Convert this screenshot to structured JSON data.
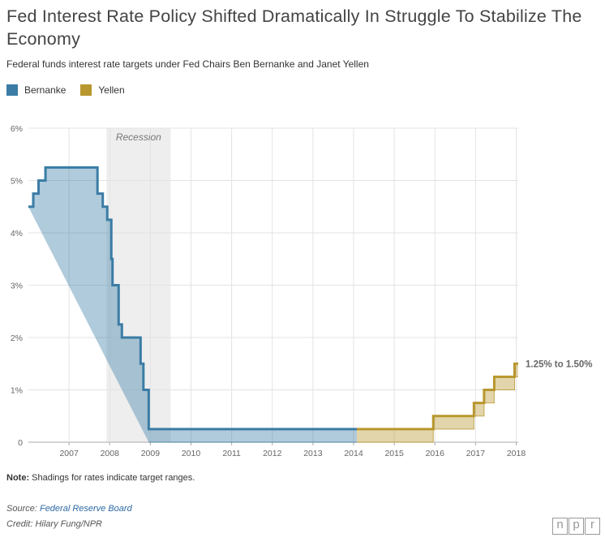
{
  "header": {
    "title": "Fed Interest Rate Policy Shifted Dramatically In Struggle To Stabilize The Economy",
    "subtitle": "Federal funds interest rate targets under Fed Chairs Ben Bernanke and Janet Yellen"
  },
  "legend": [
    {
      "label": "Bernanke",
      "color": "#3a7ca5"
    },
    {
      "label": "Yellen",
      "color": "#b8972e"
    }
  ],
  "chart_data": {
    "type": "line",
    "ylim": [
      0,
      6
    ],
    "xlim": [
      2006.0,
      2018.05
    ],
    "y_ticks": [
      "0",
      "1%",
      "2%",
      "3%",
      "4%",
      "5%",
      "6%"
    ],
    "x_ticks": [
      "2007",
      "2008",
      "2009",
      "2010",
      "2011",
      "2012",
      "2013",
      "2014",
      "2015",
      "2016",
      "2017",
      "2018"
    ],
    "grid": true,
    "recession": {
      "label": "Recession",
      "start": 2007.92,
      "end": 2009.5
    },
    "annotation": "1.25% to 1.50%",
    "series": [
      {
        "name": "Bernanke",
        "color": "#3a7ca5",
        "points": [
          [
            2006.0,
            4.5
          ],
          [
            2006.12,
            4.75
          ],
          [
            2006.25,
            5.0
          ],
          [
            2006.42,
            5.25
          ],
          [
            2007.7,
            4.75
          ],
          [
            2007.83,
            4.5
          ],
          [
            2007.94,
            4.25
          ],
          [
            2008.04,
            3.5
          ],
          [
            2008.07,
            3.0
          ],
          [
            2008.22,
            2.25
          ],
          [
            2008.3,
            2.0
          ],
          [
            2008.76,
            1.5
          ],
          [
            2008.83,
            1.0
          ],
          [
            2008.96,
            0.25
          ],
          [
            2014.08,
            0.25
          ]
        ],
        "band_floor": [
          [
            2008.96,
            0.0
          ],
          [
            2014.08,
            0.0
          ]
        ]
      },
      {
        "name": "Yellen",
        "color": "#b8972e",
        "points": [
          [
            2014.08,
            0.25
          ],
          [
            2015.96,
            0.5
          ],
          [
            2016.96,
            0.75
          ],
          [
            2017.21,
            1.0
          ],
          [
            2017.46,
            1.25
          ],
          [
            2017.96,
            1.5
          ],
          [
            2018.05,
            1.5
          ]
        ],
        "band_floor": [
          [
            2014.08,
            0.0
          ],
          [
            2015.96,
            0.25
          ],
          [
            2016.96,
            0.5
          ],
          [
            2017.21,
            0.75
          ],
          [
            2017.46,
            1.0
          ],
          [
            2017.96,
            1.25
          ],
          [
            2018.05,
            1.25
          ]
        ]
      }
    ]
  },
  "footer": {
    "note_label": "Note:",
    "note_text": " Shadings for rates indicate target ranges.",
    "source_label": "Source: ",
    "source_link": "Federal Reserve Board",
    "credit": "Credit: Hilary Fung/NPR",
    "logo": [
      "n",
      "p",
      "r"
    ]
  }
}
